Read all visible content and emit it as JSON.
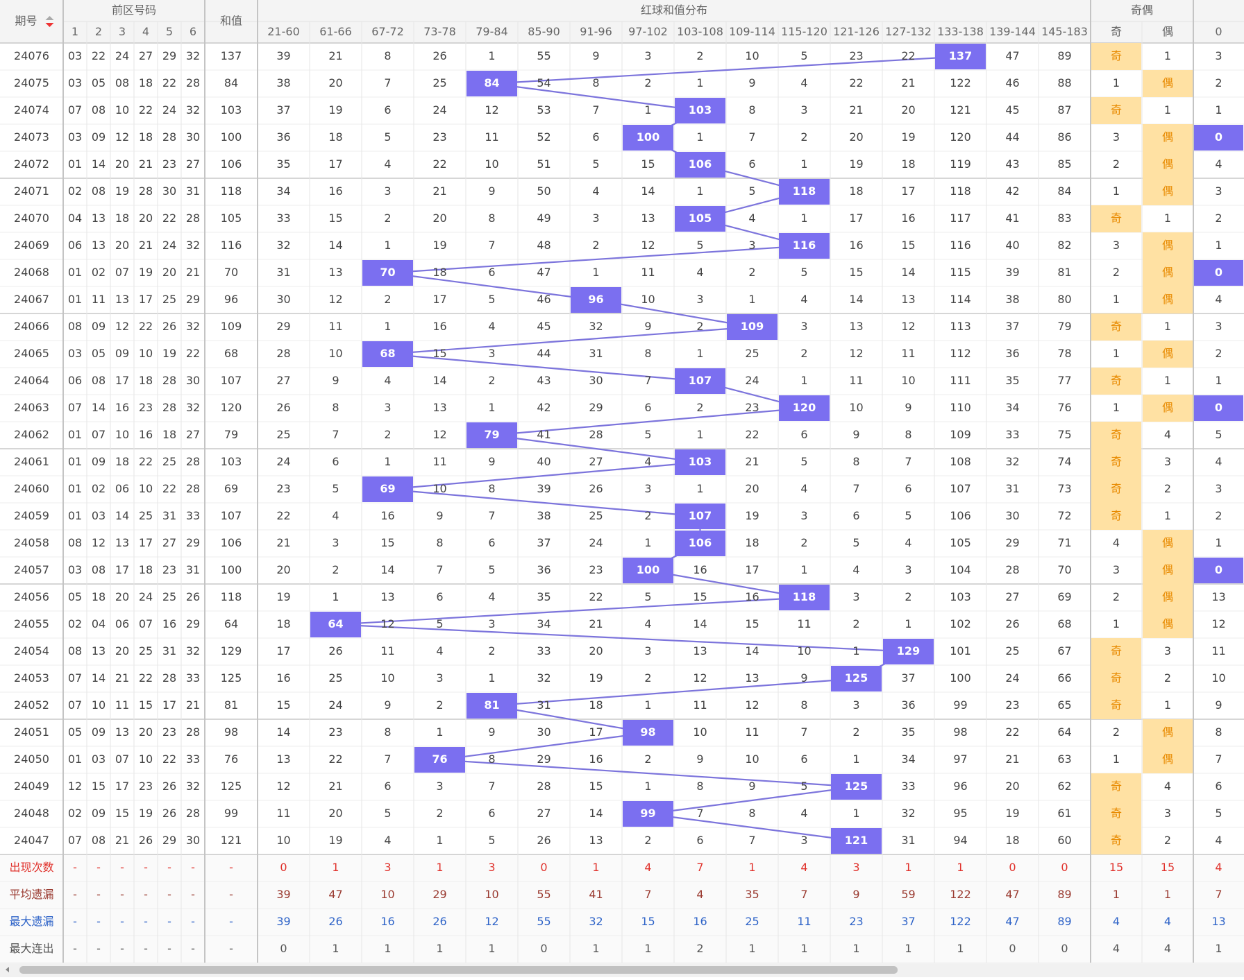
{
  "header": {
    "issue": "期号",
    "front": "前区号码",
    "front_cols": [
      1,
      2,
      3,
      4,
      5,
      6
    ],
    "sum": "和值",
    "dist": "红球和值分布",
    "ranges": [
      "21-60",
      "61-66",
      "67-72",
      "73-78",
      "79-84",
      "85-90",
      "91-96",
      "97-102",
      "103-108",
      "109-114",
      "115-120",
      "121-126",
      "127-132",
      "133-138",
      "139-144",
      "145-183"
    ],
    "parity": "奇偶",
    "parity_cols": [
      "奇",
      "偶"
    ],
    "last_col": 0
  },
  "rows": [
    {
      "issue": "24076",
      "nums": [
        "03",
        "22",
        "24",
        "27",
        "29",
        "32"
      ],
      "sum": 137,
      "dist": [
        39,
        21,
        8,
        26,
        1,
        55,
        9,
        3,
        2,
        10,
        5,
        23,
        22,
        137,
        47,
        89
      ],
      "parity": [
        "奇",
        1
      ],
      "last": 3
    },
    {
      "issue": "24075",
      "nums": [
        "03",
        "05",
        "08",
        "18",
        "22",
        "28"
      ],
      "sum": 84,
      "dist": [
        38,
        20,
        7,
        25,
        84,
        54,
        8,
        2,
        1,
        9,
        4,
        22,
        21,
        122,
        46,
        88
      ],
      "parity": [
        1,
        "偶"
      ],
      "last": 2
    },
    {
      "issue": "24074",
      "nums": [
        "07",
        "08",
        "10",
        "22",
        "24",
        "32"
      ],
      "sum": 103,
      "dist": [
        37,
        19,
        6,
        24,
        12,
        53,
        7,
        1,
        103,
        8,
        3,
        21,
        20,
        121,
        45,
        87
      ],
      "parity": [
        "奇",
        1
      ],
      "last": 1
    },
    {
      "issue": "24073",
      "nums": [
        "03",
        "09",
        "12",
        "18",
        "28",
        "30"
      ],
      "sum": 100,
      "dist": [
        36,
        18,
        5,
        23,
        11,
        52,
        6,
        100,
        1,
        7,
        2,
        20,
        19,
        120,
        44,
        86
      ],
      "parity": [
        3,
        "偶"
      ],
      "last": 0
    },
    {
      "issue": "24072",
      "nums": [
        "01",
        "14",
        "20",
        "21",
        "23",
        "27"
      ],
      "sum": 106,
      "dist": [
        35,
        17,
        4,
        22,
        10,
        51,
        5,
        15,
        106,
        6,
        1,
        19,
        18,
        119,
        43,
        85
      ],
      "parity": [
        2,
        "偶"
      ],
      "last": 4
    },
    {
      "issue": "24071",
      "nums": [
        "02",
        "08",
        "19",
        "28",
        "30",
        "31"
      ],
      "sum": 118,
      "dist": [
        34,
        16,
        3,
        21,
        9,
        50,
        4,
        14,
        1,
        5,
        118,
        18,
        17,
        118,
        42,
        84
      ],
      "parity": [
        1,
        "偶"
      ],
      "last": 3
    },
    {
      "issue": "24070",
      "nums": [
        "04",
        "13",
        "18",
        "20",
        "22",
        "28"
      ],
      "sum": 105,
      "dist": [
        33,
        15,
        2,
        20,
        8,
        49,
        3,
        13,
        105,
        4,
        1,
        17,
        16,
        117,
        41,
        83
      ],
      "parity": [
        "奇",
        1
      ],
      "last": 2
    },
    {
      "issue": "24069",
      "nums": [
        "06",
        "13",
        "20",
        "21",
        "24",
        "32"
      ],
      "sum": 116,
      "dist": [
        32,
        14,
        1,
        19,
        7,
        48,
        2,
        12,
        5,
        3,
        116,
        16,
        15,
        116,
        40,
        82
      ],
      "parity": [
        3,
        "偶"
      ],
      "last": 1
    },
    {
      "issue": "24068",
      "nums": [
        "01",
        "02",
        "07",
        "19",
        "20",
        "21"
      ],
      "sum": 70,
      "dist": [
        31,
        13,
        70,
        18,
        6,
        47,
        1,
        11,
        4,
        2,
        5,
        15,
        14,
        115,
        39,
        81
      ],
      "parity": [
        2,
        "偶"
      ],
      "last": 0
    },
    {
      "issue": "24067",
      "nums": [
        "01",
        "11",
        "13",
        "17",
        "25",
        "29"
      ],
      "sum": 96,
      "dist": [
        30,
        12,
        2,
        17,
        5,
        46,
        96,
        10,
        3,
        1,
        4,
        14,
        13,
        114,
        38,
        80
      ],
      "parity": [
        1,
        "偶"
      ],
      "last": 4
    },
    {
      "issue": "24066",
      "nums": [
        "08",
        "09",
        "12",
        "22",
        "26",
        "32"
      ],
      "sum": 109,
      "dist": [
        29,
        11,
        1,
        16,
        4,
        45,
        32,
        9,
        2,
        109,
        3,
        13,
        12,
        113,
        37,
        79
      ],
      "parity": [
        "奇",
        1
      ],
      "last": 3
    },
    {
      "issue": "24065",
      "nums": [
        "03",
        "05",
        "09",
        "10",
        "19",
        "22"
      ],
      "sum": 68,
      "dist": [
        28,
        10,
        68,
        15,
        3,
        44,
        31,
        8,
        1,
        25,
        2,
        12,
        11,
        112,
        36,
        78
      ],
      "parity": [
        1,
        "偶"
      ],
      "last": 2
    },
    {
      "issue": "24064",
      "nums": [
        "06",
        "08",
        "17",
        "18",
        "28",
        "30"
      ],
      "sum": 107,
      "dist": [
        27,
        9,
        4,
        14,
        2,
        43,
        30,
        7,
        107,
        24,
        1,
        11,
        10,
        111,
        35,
        77
      ],
      "parity": [
        "奇",
        1
      ],
      "last": 1
    },
    {
      "issue": "24063",
      "nums": [
        "07",
        "14",
        "16",
        "23",
        "28",
        "32"
      ],
      "sum": 120,
      "dist": [
        26,
        8,
        3,
        13,
        1,
        42,
        29,
        6,
        2,
        23,
        120,
        10,
        9,
        110,
        34,
        76
      ],
      "parity": [
        1,
        "偶"
      ],
      "last": 0
    },
    {
      "issue": "24062",
      "nums": [
        "01",
        "07",
        "10",
        "16",
        "18",
        "27"
      ],
      "sum": 79,
      "dist": [
        25,
        7,
        2,
        12,
        79,
        41,
        28,
        5,
        1,
        22,
        6,
        9,
        8,
        109,
        33,
        75
      ],
      "parity": [
        "奇",
        4
      ],
      "last": 5
    },
    {
      "issue": "24061",
      "nums": [
        "01",
        "09",
        "18",
        "22",
        "25",
        "28"
      ],
      "sum": 103,
      "dist": [
        24,
        6,
        1,
        11,
        9,
        40,
        27,
        4,
        103,
        21,
        5,
        8,
        7,
        108,
        32,
        74
      ],
      "parity": [
        "奇",
        3
      ],
      "last": 4
    },
    {
      "issue": "24060",
      "nums": [
        "01",
        "02",
        "06",
        "10",
        "22",
        "28"
      ],
      "sum": 69,
      "dist": [
        23,
        5,
        69,
        10,
        8,
        39,
        26,
        3,
        1,
        20,
        4,
        7,
        6,
        107,
        31,
        73
      ],
      "parity": [
        "奇",
        2
      ],
      "last": 3
    },
    {
      "issue": "24059",
      "nums": [
        "01",
        "03",
        "14",
        "25",
        "31",
        "33"
      ],
      "sum": 107,
      "dist": [
        22,
        4,
        16,
        9,
        7,
        38,
        25,
        2,
        107,
        19,
        3,
        6,
        5,
        106,
        30,
        72
      ],
      "parity": [
        "奇",
        1
      ],
      "last": 2
    },
    {
      "issue": "24058",
      "nums": [
        "08",
        "12",
        "13",
        "17",
        "27",
        "29"
      ],
      "sum": 106,
      "dist": [
        21,
        3,
        15,
        8,
        6,
        37,
        24,
        1,
        106,
        18,
        2,
        5,
        4,
        105,
        29,
        71
      ],
      "parity": [
        4,
        "偶"
      ],
      "last": 1
    },
    {
      "issue": "24057",
      "nums": [
        "03",
        "08",
        "17",
        "18",
        "23",
        "31"
      ],
      "sum": 100,
      "dist": [
        20,
        2,
        14,
        7,
        5,
        36,
        23,
        100,
        16,
        17,
        1,
        4,
        3,
        104,
        28,
        70
      ],
      "parity": [
        3,
        "偶"
      ],
      "last": 0
    },
    {
      "issue": "24056",
      "nums": [
        "05",
        "18",
        "20",
        "24",
        "25",
        "26"
      ],
      "sum": 118,
      "dist": [
        19,
        1,
        13,
        6,
        4,
        35,
        22,
        5,
        15,
        16,
        118,
        3,
        2,
        103,
        27,
        69
      ],
      "parity": [
        2,
        "偶"
      ],
      "last": 13
    },
    {
      "issue": "24055",
      "nums": [
        "02",
        "04",
        "06",
        "07",
        "16",
        "29"
      ],
      "sum": 64,
      "dist": [
        18,
        64,
        12,
        5,
        3,
        34,
        21,
        4,
        14,
        15,
        11,
        2,
        1,
        102,
        26,
        68
      ],
      "parity": [
        1,
        "偶"
      ],
      "last": 12
    },
    {
      "issue": "24054",
      "nums": [
        "08",
        "13",
        "20",
        "25",
        "31",
        "32"
      ],
      "sum": 129,
      "dist": [
        17,
        26,
        11,
        4,
        2,
        33,
        20,
        3,
        13,
        14,
        10,
        1,
        129,
        101,
        25,
        67
      ],
      "parity": [
        "奇",
        3
      ],
      "last": 11
    },
    {
      "issue": "24053",
      "nums": [
        "07",
        "14",
        "21",
        "22",
        "28",
        "33"
      ],
      "sum": 125,
      "dist": [
        16,
        25,
        10,
        3,
        1,
        32,
        19,
        2,
        12,
        13,
        9,
        125,
        37,
        100,
        24,
        66
      ],
      "parity": [
        "奇",
        2
      ],
      "last": 10
    },
    {
      "issue": "24052",
      "nums": [
        "07",
        "10",
        "11",
        "15",
        "17",
        "21"
      ],
      "sum": 81,
      "dist": [
        15,
        24,
        9,
        2,
        81,
        31,
        18,
        1,
        11,
        12,
        8,
        3,
        36,
        99,
        23,
        65
      ],
      "parity": [
        "奇",
        1
      ],
      "last": 9
    },
    {
      "issue": "24051",
      "nums": [
        "05",
        "09",
        "13",
        "20",
        "23",
        "28"
      ],
      "sum": 98,
      "dist": [
        14,
        23,
        8,
        1,
        9,
        30,
        17,
        98,
        10,
        11,
        7,
        2,
        35,
        98,
        22,
        64
      ],
      "parity": [
        2,
        "偶"
      ],
      "last": 8
    },
    {
      "issue": "24050",
      "nums": [
        "01",
        "03",
        "07",
        "10",
        "22",
        "33"
      ],
      "sum": 76,
      "dist": [
        13,
        22,
        7,
        76,
        8,
        29,
        16,
        2,
        9,
        10,
        6,
        1,
        34,
        97,
        21,
        63
      ],
      "parity": [
        1,
        "偶"
      ],
      "last": 7
    },
    {
      "issue": "24049",
      "nums": [
        "12",
        "15",
        "17",
        "23",
        "26",
        "32"
      ],
      "sum": 125,
      "dist": [
        12,
        21,
        6,
        3,
        7,
        28,
        15,
        1,
        8,
        9,
        5,
        125,
        33,
        96,
        20,
        62
      ],
      "parity": [
        "奇",
        4
      ],
      "last": 6
    },
    {
      "issue": "24048",
      "nums": [
        "02",
        "09",
        "15",
        "19",
        "26",
        "28"
      ],
      "sum": 99,
      "dist": [
        11,
        20,
        5,
        2,
        6,
        27,
        14,
        99,
        7,
        8,
        4,
        1,
        32,
        95,
        19,
        61
      ],
      "parity": [
        "奇",
        3
      ],
      "last": 5
    },
    {
      "issue": "24047",
      "nums": [
        "07",
        "08",
        "21",
        "26",
        "29",
        "30"
      ],
      "sum": 121,
      "dist": [
        10,
        19,
        4,
        1,
        5,
        26,
        13,
        2,
        6,
        7,
        3,
        121,
        31,
        94,
        18,
        60
      ],
      "parity": [
        "奇",
        2
      ],
      "last": 4
    }
  ],
  "stats": [
    {
      "label": "出现次数",
      "nums": [
        "-",
        "-",
        "-",
        "-",
        "-",
        "-"
      ],
      "sum": "-",
      "dist": [
        0,
        1,
        3,
        1,
        3,
        0,
        1,
        4,
        7,
        1,
        4,
        3,
        1,
        1,
        0,
        0
      ],
      "parity": [
        15,
        15
      ],
      "last": 4
    },
    {
      "label": "平均遗漏",
      "nums": [
        "-",
        "-",
        "-",
        "-",
        "-",
        "-"
      ],
      "sum": "-",
      "dist": [
        39,
        47,
        10,
        29,
        10,
        55,
        41,
        7,
        4,
        35,
        7,
        9,
        59,
        122,
        47,
        89
      ],
      "parity": [
        1,
        1
      ],
      "last": 7
    },
    {
      "label": "最大遗漏",
      "nums": [
        "-",
        "-",
        "-",
        "-",
        "-",
        "-"
      ],
      "sum": "-",
      "dist": [
        39,
        26,
        16,
        26,
        12,
        55,
        32,
        15,
        16,
        25,
        11,
        23,
        37,
        122,
        47,
        89
      ],
      "parity": [
        4,
        4
      ],
      "last": 13
    },
    {
      "label": "最大连出",
      "nums": [
        "-",
        "-",
        "-",
        "-",
        "-",
        "-"
      ],
      "sum": "-",
      "dist": [
        0,
        1,
        1,
        1,
        1,
        0,
        1,
        1,
        2,
        1,
        1,
        1,
        1,
        1,
        0,
        0
      ],
      "parity": [
        4,
        4
      ],
      "last": 1
    }
  ]
}
